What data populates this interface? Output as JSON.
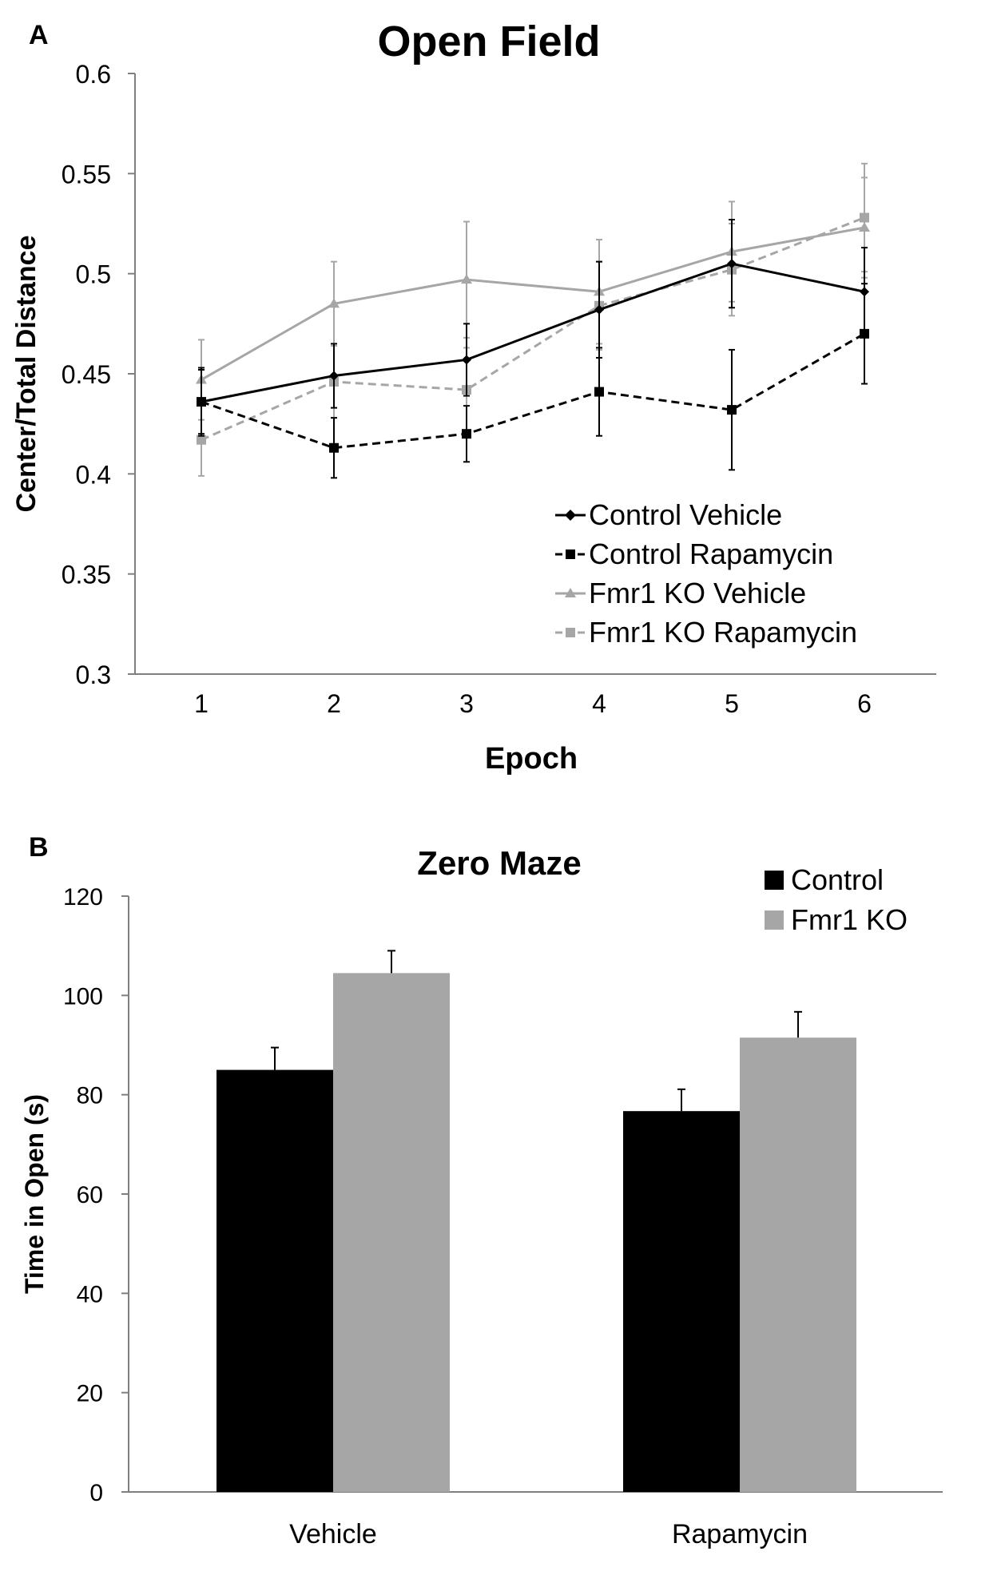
{
  "panels": {
    "a_label": "A",
    "b_label": "B"
  },
  "colors": {
    "black": "#000000",
    "gray_line": "#a6a6a6",
    "gray_bar": "#a6a6a6",
    "background": "#ffffff"
  },
  "chart_data": [
    {
      "type": "line",
      "title": "Open Field",
      "xlabel": "Epoch",
      "ylabel": "Center/Total Distance",
      "ylim": [
        0.3,
        0.6
      ],
      "yticks": [
        "0.3",
        "0.35",
        "0.4",
        "0.45",
        "0.5",
        "0.55",
        "0.6"
      ],
      "categories": [
        "1",
        "2",
        "3",
        "4",
        "5",
        "6"
      ],
      "legend_position": "bottom-right",
      "series": [
        {
          "name": "Control Vehicle",
          "values": [
            0.436,
            0.449,
            0.457,
            0.482,
            0.505,
            0.491
          ],
          "errors": [
            0.017,
            0.016,
            0.018,
            0.024,
            0.022,
            0.022
          ],
          "style": "solid",
          "color": "#000000",
          "marker": "diamond"
        },
        {
          "name": "Control Rapamycin",
          "values": [
            0.436,
            0.413,
            0.42,
            0.441,
            0.432,
            0.47
          ],
          "errors": [
            0.016,
            0.015,
            0.014,
            0.022,
            0.03,
            0.025
          ],
          "style": "dashed",
          "color": "#000000",
          "marker": "square"
        },
        {
          "name": "Fmr1 KO Vehicle",
          "values": [
            0.447,
            0.485,
            0.497,
            0.491,
            0.511,
            0.523
          ],
          "errors": [
            0.02,
            0.021,
            0.029,
            0.026,
            0.025,
            0.025
          ],
          "style": "solid",
          "color": "#a6a6a6",
          "marker": "triangle"
        },
        {
          "name": "Fmr1 KO Rapamycin",
          "values": [
            0.417,
            0.446,
            0.442,
            0.484,
            0.502,
            0.528
          ],
          "errors": [
            0.018,
            0.018,
            0.021,
            0.022,
            0.023,
            0.027
          ],
          "style": "dashed",
          "color": "#a6a6a6",
          "marker": "square"
        }
      ]
    },
    {
      "type": "bar",
      "title": "Zero Maze",
      "xlabel": "",
      "ylabel": "Time in Open (s)",
      "ylim": [
        0,
        120
      ],
      "yticks": [
        "0",
        "20",
        "40",
        "60",
        "80",
        "100",
        "120"
      ],
      "categories": [
        "Vehicle",
        "Rapamycin"
      ],
      "legend_position": "top-right",
      "series": [
        {
          "name": "Control",
          "values": [
            85,
            76.7
          ],
          "errors": [
            4.5,
            4.4
          ],
          "color": "#000000"
        },
        {
          "name": "Fmr1 KO",
          "values": [
            104.5,
            91.5
          ],
          "errors": [
            4.5,
            5.2
          ],
          "color": "#a6a6a6"
        }
      ]
    }
  ]
}
